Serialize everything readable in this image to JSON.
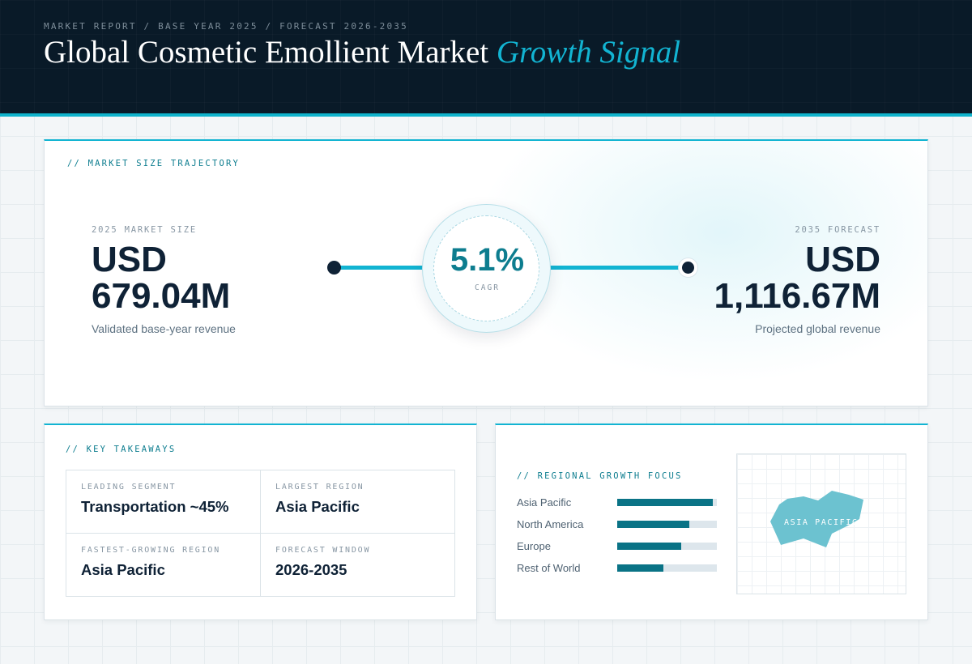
{
  "header": {
    "kicker": "MARKET REPORT / BASE YEAR 2025 / FORECAST 2026-2035",
    "title_main": "Global Cosmetic Emollient Market",
    "title_accent": "Growth Signal"
  },
  "trajectory": {
    "section_label": "// MARKET SIZE TRAJECTORY",
    "base": {
      "label": "2025 MARKET SIZE",
      "value_line1": "USD",
      "value_line2": "679.04M",
      "note": "Validated base-year revenue"
    },
    "cagr": {
      "value": "5.1%",
      "label": "CAGR"
    },
    "forecast": {
      "label": "2035 FORECAST",
      "value_line1": "USD",
      "value_line2": "1,116.67M",
      "note": "Projected global revenue"
    }
  },
  "takeaways": {
    "section_label": "// KEY TAKEAWAYS",
    "items": [
      {
        "label": "LEADING SEGMENT",
        "value": "Transportation ~45%"
      },
      {
        "label": "LARGEST REGION",
        "value": "Asia Pacific"
      },
      {
        "label": "FASTEST-GROWING REGION",
        "value": "Asia Pacific"
      },
      {
        "label": "FORECAST WINDOW",
        "value": "2026-2035"
      }
    ]
  },
  "regional": {
    "section_label": "// REGIONAL GROWTH FOCUS",
    "bars": [
      {
        "name": "Asia Pacific",
        "fill_fraction": 0.96
      },
      {
        "name": "North America",
        "fill_fraction": 0.72
      },
      {
        "name": "Europe",
        "fill_fraction": 0.64
      },
      {
        "name": "Rest of World",
        "fill_fraction": 0.46
      }
    ],
    "map_label": "ASIA PACIFIC"
  },
  "colors": {
    "accent": "#12b4d2",
    "accent_dark": "#0d7d8f",
    "navy": "#091a28",
    "ink": "#0f2236",
    "bar_fill": "#0a7386",
    "map_fill": "#6cc2d0"
  }
}
